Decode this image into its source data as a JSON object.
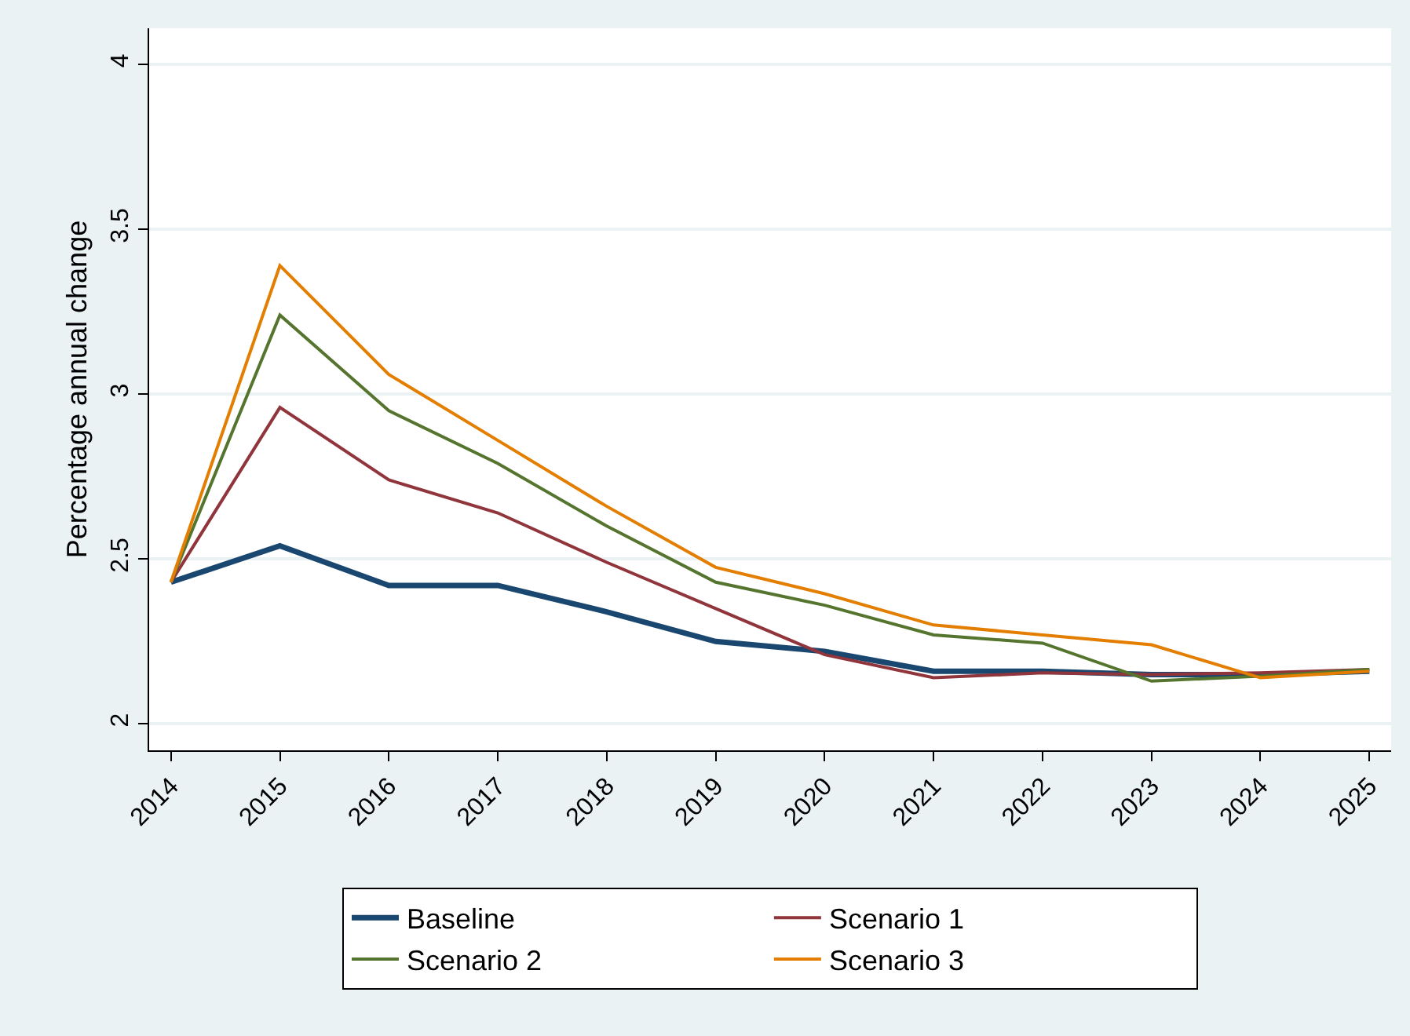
{
  "chart_data": {
    "type": "line",
    "ylabel": "Percentage annual change",
    "x": [
      2014,
      2015,
      2016,
      2017,
      2018,
      2019,
      2020,
      2021,
      2022,
      2023,
      2024,
      2025
    ],
    "series": [
      {
        "name": "Baseline",
        "color": "#1a476f",
        "values": [
          2.43,
          2.54,
          2.42,
          2.42,
          2.34,
          2.25,
          2.22,
          2.16,
          2.16,
          2.15,
          2.15,
          2.16
        ]
      },
      {
        "name": "Scenario 1",
        "color": "#90353b",
        "values": [
          2.43,
          2.96,
          2.74,
          2.64,
          2.49,
          2.35,
          2.21,
          2.14,
          2.155,
          2.15,
          2.155,
          2.165
        ]
      },
      {
        "name": "Scenario 2",
        "color": "#55752f",
        "values": [
          2.43,
          3.24,
          2.95,
          2.79,
          2.6,
          2.43,
          2.36,
          2.27,
          2.245,
          2.13,
          2.145,
          2.165
        ]
      },
      {
        "name": "Scenario 3",
        "color": "#e37e00",
        "values": [
          2.43,
          3.39,
          3.06,
          2.86,
          2.66,
          2.475,
          2.395,
          2.3,
          2.27,
          2.24,
          2.14,
          2.16
        ]
      }
    ],
    "xlim": [
      2013.8,
      2025.2
    ],
    "xticks": [
      2014,
      2015,
      2016,
      2017,
      2018,
      2019,
      2020,
      2021,
      2022,
      2023,
      2024,
      2025
    ],
    "ylim": [
      1.92,
      4.11
    ],
    "yticks": [
      2,
      2.5,
      3,
      3.5,
      4
    ],
    "grid": "y",
    "legend": "bottom",
    "marker": "none",
    "line_style": "solid"
  }
}
